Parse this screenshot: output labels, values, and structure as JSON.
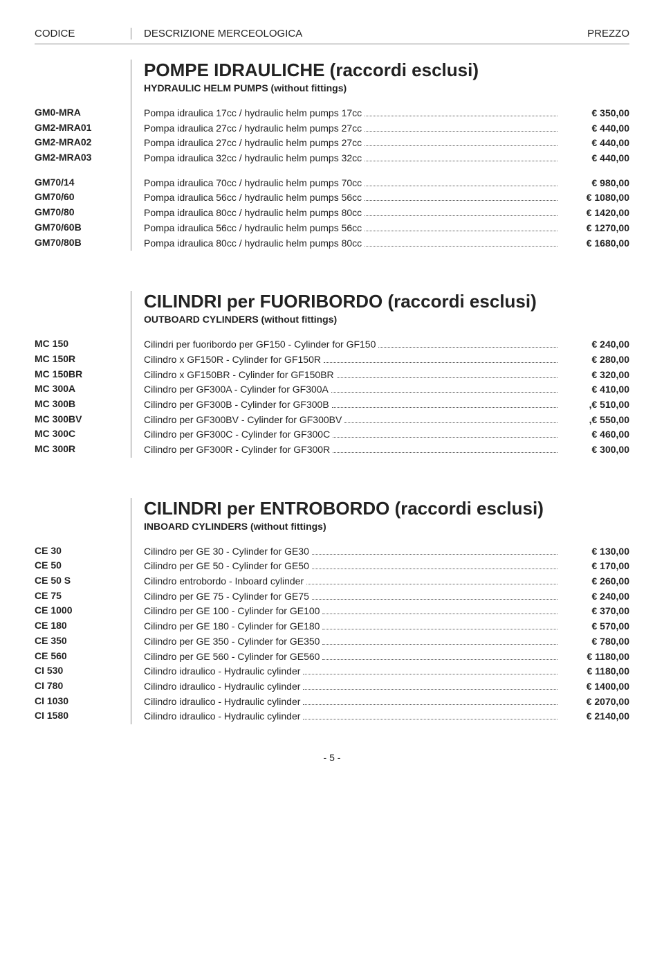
{
  "header": {
    "codice": "CODICE",
    "descrizione": "DESCRIZIONE MERCEOLOGICA",
    "prezzo": "PREZZO"
  },
  "sections": [
    {
      "title": "POMPE IDRAULICHE (raccordi esclusi)",
      "subtitle": "HYDRAULIC HELM PUMPS (without fittings)",
      "groups": [
        [
          {
            "code": "GM0-MRA",
            "desc": "Pompa idraulica 17cc / hydraulic helm pumps 17cc",
            "price": "€  350,00"
          },
          {
            "code": "GM2-MRA01",
            "desc": "Pompa idraulica 27cc / hydraulic helm pumps 27cc",
            "price": "€  440,00"
          },
          {
            "code": "GM2-MRA02",
            "desc": "Pompa idraulica 27cc / hydraulic helm pumps 27cc",
            "price": "€  440,00"
          },
          {
            "code": "GM2-MRA03",
            "desc": "Pompa idraulica 32cc / hydraulic helm pumps 32cc",
            "price": "€  440,00"
          }
        ],
        [
          {
            "code": "GM70/14",
            "desc": "Pompa idraulica 70cc / hydraulic helm pumps 70cc",
            "price": "€  980,00"
          },
          {
            "code": "GM70/60",
            "desc": "Pompa idraulica 56cc / hydraulic helm pumps 56cc",
            "price": "€ 1080,00"
          },
          {
            "code": "GM70/80",
            "desc": "Pompa idraulica 80cc / hydraulic helm pumps 80cc",
            "price": "€ 1420,00"
          },
          {
            "code": "GM70/60B",
            "desc": "Pompa idraulica 56cc / hydraulic helm pumps 56cc",
            "price": "€ 1270,00"
          },
          {
            "code": "GM70/80B",
            "desc": "Pompa idraulica 80cc / hydraulic helm pumps 80cc",
            "price": "€ 1680,00"
          }
        ]
      ]
    },
    {
      "title": "CILINDRI per FUORIBORDO (raccordi esclusi)",
      "subtitle": "OUTBOARD CYLINDERS (without fittings)",
      "groups": [
        [
          {
            "code": "MC 150",
            "desc": "Cilindri per fuoribordo per GF150 - Cylinder for GF150",
            "price": "€ 240,00"
          },
          {
            "code": "MC 150R",
            "desc": "Cilindro x GF150R - Cylinder for GF150R",
            "price": "€ 280,00"
          },
          {
            "code": "MC 150BR",
            "desc": "Cilindro x GF150BR - Cylinder for GF150BR",
            "price": "€ 320,00"
          },
          {
            "code": "MC 300A",
            "desc": "Cilindro per GF300A - Cylinder for GF300A",
            "price": "€ 410,00"
          },
          {
            "code": "MC 300B",
            "desc": "Cilindro per GF300B - Cylinder for GF300B",
            "price": ",€ 510,00"
          },
          {
            "code": "MC 300BV",
            "desc": "Cilindro per GF300BV - Cylinder for GF300BV",
            "price": ",€ 550,00"
          },
          {
            "code": "MC 300C",
            "desc": "Cilindro per GF300C - Cylinder for GF300C",
            "price": "€ 460,00"
          },
          {
            "code": "MC 300R",
            "desc": "Cilindro per GF300R - Cylinder for GF300R",
            "price": "€ 300,00"
          }
        ]
      ]
    },
    {
      "title": "CILINDRI per ENTROBORDO (raccordi esclusi)",
      "subtitle": "INBOARD CYLINDERS (without fittings)",
      "groups": [
        [
          {
            "code": "CE 30",
            "desc": "Cilindro per GE 30 - Cylinder for GE30",
            "price": "€  130,00"
          },
          {
            "code": "CE 50",
            "desc": "Cilindro per GE 50 - Cylinder for GE50",
            "price": "€  170,00"
          },
          {
            "code": "CE 50 S",
            "desc": "Cilindro entrobordo - Inboard cylinder",
            "price": "€  260,00"
          },
          {
            "code": "CE 75",
            "desc": "Cilindro per GE 75 - Cylinder for GE75",
            "price": "€  240,00"
          },
          {
            "code": "CE 1000",
            "desc": "Cilindro per GE 100 - Cylinder for GE100",
            "price": "€  370,00"
          },
          {
            "code": "CE 180",
            "desc": "Cilindro per GE 180 - Cylinder for GE180",
            "price": "€  570,00"
          },
          {
            "code": "CE 350",
            "desc": "Cilindro per GE 350 - Cylinder for GE350",
            "price": "€  780,00"
          },
          {
            "code": "CE 560",
            "desc": "Cilindro per GE 560 - Cylinder for GE560",
            "price": "€ 1180,00"
          },
          {
            "code": "CI 530",
            "desc": "Cilindro idraulico - Hydraulic cylinder",
            "price": "€ 1180,00"
          },
          {
            "code": "CI 780",
            "desc": "Cilindro idraulico - Hydraulic cylinder",
            "price": "€ 1400,00"
          },
          {
            "code": "CI 1030",
            "desc": "Cilindro idraulico - Hydraulic cylinder",
            "price": "€ 2070,00"
          },
          {
            "code": "CI 1580",
            "desc": "Cilindro idraulico - Hydraulic cylinder",
            "price": "€ 2140,00"
          }
        ]
      ]
    }
  ],
  "footer": "- 5 -"
}
